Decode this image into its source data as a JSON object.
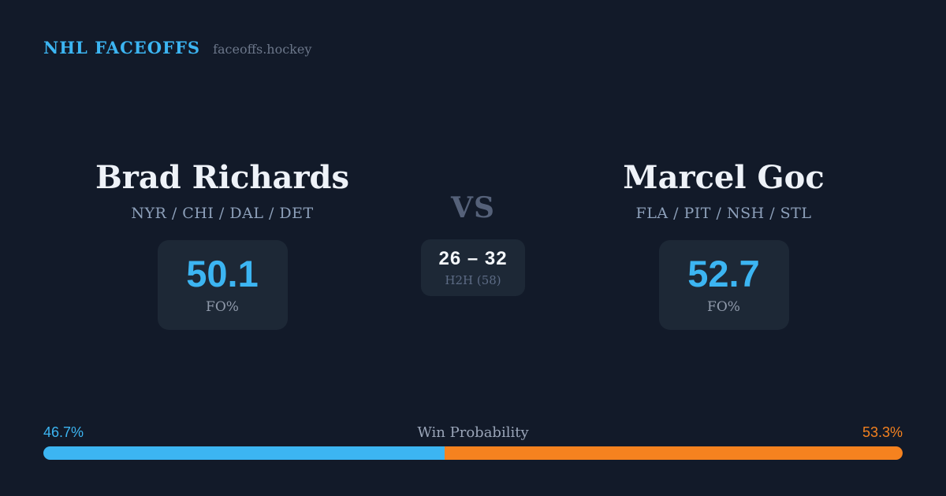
{
  "colors": {
    "background": "#121a29",
    "card": "#1d2836",
    "accent_blue": "#3cb5f2",
    "accent_orange": "#f5821f"
  },
  "header": {
    "brand": "NHL FACEOFFS",
    "site": "faceoffs.hockey"
  },
  "matchup": {
    "vs_label": "VS",
    "h2h": {
      "score": "26 – 32",
      "label": "H2H (58)"
    },
    "players": [
      {
        "name": "Brad Richards",
        "teams": "NYR / CHI / DAL / DET",
        "stat_value": "50.1",
        "stat_label": "FO%"
      },
      {
        "name": "Marcel Goc",
        "teams": "FLA / PIT / NSH / STL",
        "stat_value": "52.7",
        "stat_label": "FO%"
      }
    ]
  },
  "win_probability": {
    "title": "Win Probability",
    "left": {
      "label": "46.7%",
      "value": 46.7,
      "color": "#3cb5f2"
    },
    "right": {
      "label": "53.3%",
      "value": 53.3,
      "color": "#f5821f"
    }
  }
}
